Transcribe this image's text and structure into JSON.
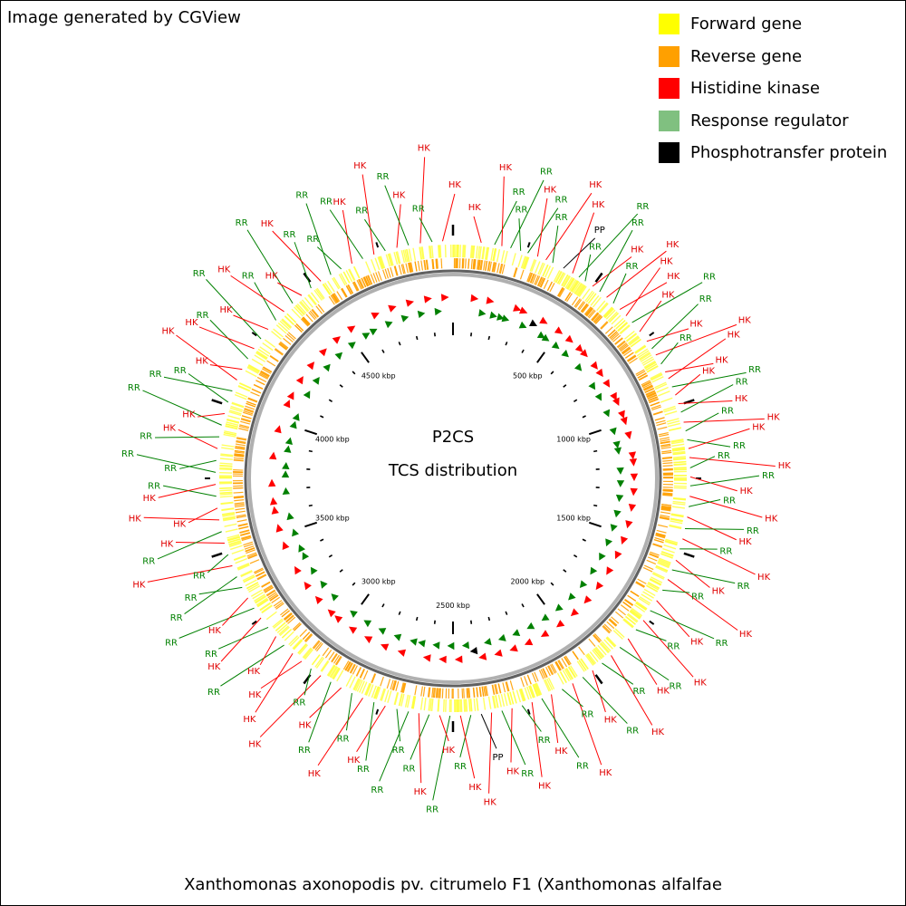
{
  "header": {
    "credit": "Image generated by CGView"
  },
  "legend": {
    "items": [
      {
        "key": "forward",
        "label": "Forward gene",
        "color": "#ffff00"
      },
      {
        "key": "reverse",
        "label": "Reverse gene",
        "color": "#ffa000"
      },
      {
        "key": "hk",
        "label": "Histidine kinase",
        "color": "#ff0000"
      },
      {
        "key": "rr",
        "label": "Response regulator",
        "color": "#80c080"
      },
      {
        "key": "pp",
        "label": "Phosphotransfer protein",
        "color": "#000000"
      }
    ]
  },
  "center": {
    "title": "P2CS",
    "subtitle": "TCS distribution"
  },
  "caption": "Xanthomonas axonopodis pv. citrumelo F1 (Xanthomonas alfalfae",
  "colors": {
    "hk_label": "#e00000",
    "rr_label": "#008000",
    "pp_label": "#000000",
    "backbone": "#808080",
    "marker_hk": "#ff0000",
    "marker_rr": "#008000"
  },
  "ruler": {
    "genome_kbp": 5000,
    "labels": [
      {
        "kbp": 500,
        "text": "500 kbp"
      },
      {
        "kbp": 1000,
        "text": "1000 kbp"
      },
      {
        "kbp": 1500,
        "text": "1500 kbp"
      },
      {
        "kbp": 2000,
        "text": "2000 kbp"
      },
      {
        "kbp": 2500,
        "text": "2500 kbp"
      },
      {
        "kbp": 3000,
        "text": "3000 kbp"
      },
      {
        "kbp": 3500,
        "text": "3500 kbp"
      },
      {
        "kbp": 4000,
        "text": "4000 kbp"
      },
      {
        "kbp": 4500,
        "text": "4500 kbp"
      }
    ]
  },
  "features": [
    {
      "kbp": 95,
      "type": "HK"
    },
    {
      "kbp": 140,
      "type": "RR"
    },
    {
      "kbp": 165,
      "type": "HK"
    },
    {
      "kbp": 195,
      "type": "RR"
    },
    {
      "kbp": 230,
      "type": "RR"
    },
    {
      "kbp": 255,
      "type": "RR"
    },
    {
      "kbp": 290,
      "type": "HK"
    },
    {
      "kbp": 320,
      "type": "HK"
    },
    {
      "kbp": 345,
      "type": "RR"
    },
    {
      "kbp": 385,
      "type": "PP"
    },
    {
      "kbp": 420,
      "type": "HK"
    },
    {
      "kbp": 445,
      "type": "RR"
    },
    {
      "kbp": 470,
      "type": "RR"
    },
    {
      "kbp": 500,
      "type": "HK"
    },
    {
      "kbp": 530,
      "type": "RR"
    },
    {
      "kbp": 560,
      "type": "HK"
    },
    {
      "kbp": 590,
      "type": "RR"
    },
    {
      "kbp": 620,
      "type": "HK"
    },
    {
      "kbp": 650,
      "type": "HK"
    },
    {
      "kbp": 680,
      "type": "RR"
    },
    {
      "kbp": 720,
      "type": "HK"
    },
    {
      "kbp": 760,
      "type": "HK"
    },
    {
      "kbp": 790,
      "type": "RR"
    },
    {
      "kbp": 815,
      "type": "HK"
    },
    {
      "kbp": 850,
      "type": "RR"
    },
    {
      "kbp": 880,
      "type": "HK"
    },
    {
      "kbp": 905,
      "type": "HK"
    },
    {
      "kbp": 935,
      "type": "RR"
    },
    {
      "kbp": 965,
      "type": "HK"
    },
    {
      "kbp": 995,
      "type": "HK"
    },
    {
      "kbp": 1025,
      "type": "RR"
    },
    {
      "kbp": 1060,
      "type": "HK"
    },
    {
      "kbp": 1090,
      "type": "RR"
    },
    {
      "kbp": 1120,
      "type": "RR"
    },
    {
      "kbp": 1150,
      "type": "HK"
    },
    {
      "kbp": 1180,
      "type": "HK"
    },
    {
      "kbp": 1215,
      "type": "RR"
    },
    {
      "kbp": 1245,
      "type": "HK"
    },
    {
      "kbp": 1275,
      "type": "RR"
    },
    {
      "kbp": 1310,
      "type": "HK"
    },
    {
      "kbp": 1345,
      "type": "RR"
    },
    {
      "kbp": 1380,
      "type": "HK"
    },
    {
      "kbp": 1420,
      "type": "RR"
    },
    {
      "kbp": 1455,
      "type": "HK"
    },
    {
      "kbp": 1490,
      "type": "RR"
    },
    {
      "kbp": 1530,
      "type": "HK"
    },
    {
      "kbp": 1565,
      "type": "RR"
    },
    {
      "kbp": 1600,
      "type": "HK"
    },
    {
      "kbp": 1640,
      "type": "RR"
    },
    {
      "kbp": 1680,
      "type": "HK"
    },
    {
      "kbp": 1720,
      "type": "RR"
    },
    {
      "kbp": 1760,
      "type": "HK"
    },
    {
      "kbp": 1800,
      "type": "RR"
    },
    {
      "kbp": 1840,
      "type": "HK"
    },
    {
      "kbp": 1880,
      "type": "RR"
    },
    {
      "kbp": 1920,
      "type": "HK"
    },
    {
      "kbp": 1960,
      "type": "RR"
    },
    {
      "kbp": 2000,
      "type": "HK"
    },
    {
      "kbp": 2040,
      "type": "RR"
    },
    {
      "kbp": 2080,
      "type": "HK"
    },
    {
      "kbp": 2120,
      "type": "RR"
    },
    {
      "kbp": 2160,
      "type": "HK"
    },
    {
      "kbp": 2195,
      "type": "RR"
    },
    {
      "kbp": 2230,
      "type": "HK"
    },
    {
      "kbp": 2265,
      "type": "RR"
    },
    {
      "kbp": 2300,
      "type": "HK"
    },
    {
      "kbp": 2335,
      "type": "RR"
    },
    {
      "kbp": 2370,
      "type": "HK"
    },
    {
      "kbp": 2405,
      "type": "PP"
    },
    {
      "kbp": 2440,
      "type": "RR"
    },
    {
      "kbp": 2475,
      "type": "HK"
    },
    {
      "kbp": 2510,
      "type": "RR"
    },
    {
      "kbp": 2545,
      "type": "HK"
    },
    {
      "kbp": 2580,
      "type": "RR"
    },
    {
      "kbp": 2615,
      "type": "HK"
    },
    {
      "kbp": 2650,
      "type": "RR"
    },
    {
      "kbp": 2690,
      "type": "RR"
    },
    {
      "kbp": 2730,
      "type": "HK"
    },
    {
      "kbp": 2770,
      "type": "RR"
    },
    {
      "kbp": 2810,
      "type": "HK"
    },
    {
      "kbp": 2850,
      "type": "RR"
    },
    {
      "kbp": 2890,
      "type": "HK"
    },
    {
      "kbp": 2930,
      "type": "RR"
    },
    {
      "kbp": 2970,
      "type": "HK"
    },
    {
      "kbp": 3010,
      "type": "RR"
    },
    {
      "kbp": 3050,
      "type": "HK"
    },
    {
      "kbp": 3090,
      "type": "HK"
    },
    {
      "kbp": 3130,
      "type": "RR"
    },
    {
      "kbp": 3170,
      "type": "HK"
    },
    {
      "kbp": 3210,
      "type": "RR"
    },
    {
      "kbp": 3250,
      "type": "HK"
    },
    {
      "kbp": 3290,
      "type": "RR"
    },
    {
      "kbp": 3330,
      "type": "HK"
    },
    {
      "kbp": 3370,
      "type": "RR"
    },
    {
      "kbp": 3410,
      "type": "RR"
    },
    {
      "kbp": 3450,
      "type": "HK"
    },
    {
      "kbp": 3490,
      "type": "RR"
    },
    {
      "kbp": 3530,
      "type": "HK"
    },
    {
      "kbp": 3570,
      "type": "RR"
    },
    {
      "kbp": 3610,
      "type": "HK"
    },
    {
      "kbp": 3650,
      "type": "HK"
    },
    {
      "kbp": 3690,
      "type": "RR"
    },
    {
      "kbp": 3730,
      "type": "HK"
    },
    {
      "kbp": 3770,
      "type": "RR"
    },
    {
      "kbp": 3810,
      "type": "RR"
    },
    {
      "kbp": 3850,
      "type": "HK"
    },
    {
      "kbp": 3890,
      "type": "RR"
    },
    {
      "kbp": 3930,
      "type": "RR"
    },
    {
      "kbp": 3970,
      "type": "HK"
    },
    {
      "kbp": 4010,
      "type": "RR"
    },
    {
      "kbp": 4050,
      "type": "RR"
    },
    {
      "kbp": 4090,
      "type": "HK"
    },
    {
      "kbp": 4130,
      "type": "HK"
    },
    {
      "kbp": 4170,
      "type": "RR"
    },
    {
      "kbp": 4210,
      "type": "HK"
    },
    {
      "kbp": 4250,
      "type": "RR"
    },
    {
      "kbp": 4290,
      "type": "HK"
    },
    {
      "kbp": 4330,
      "type": "RR"
    },
    {
      "kbp": 4370,
      "type": "HK"
    },
    {
      "kbp": 4410,
      "type": "RR"
    },
    {
      "kbp": 4450,
      "type": "HK"
    },
    {
      "kbp": 4490,
      "type": "RR"
    },
    {
      "kbp": 4530,
      "type": "HK"
    },
    {
      "kbp": 4570,
      "type": "RR"
    },
    {
      "kbp": 4610,
      "type": "RR"
    },
    {
      "kbp": 4650,
      "type": "HK"
    },
    {
      "kbp": 4690,
      "type": "RR"
    },
    {
      "kbp": 4730,
      "type": "HK"
    },
    {
      "kbp": 4770,
      "type": "RR"
    },
    {
      "kbp": 4810,
      "type": "HK"
    },
    {
      "kbp": 4850,
      "type": "RR"
    },
    {
      "kbp": 4890,
      "type": "HK"
    },
    {
      "kbp": 4930,
      "type": "RR"
    },
    {
      "kbp": 4965,
      "type": "HK"
    }
  ]
}
